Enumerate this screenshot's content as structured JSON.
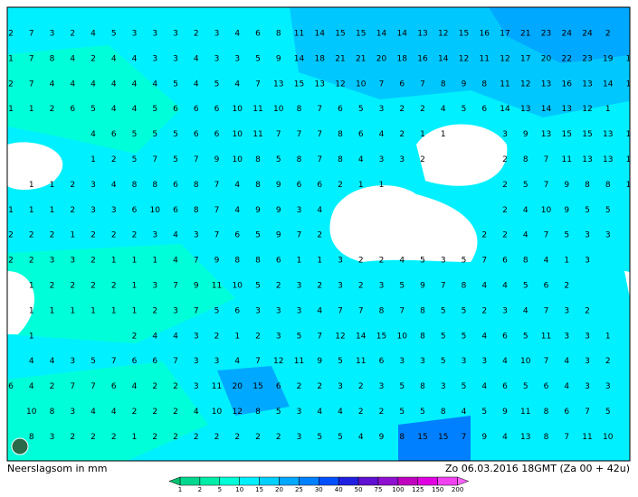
{
  "map": {
    "title": "Neerslagsom in mm",
    "timestamp": "Zo 06.03.2016 18GMT (Za 00 + 42u)",
    "grid": [
      [
        2,
        7,
        3,
        2,
        4,
        5,
        3,
        3,
        3,
        2,
        3,
        4,
        6,
        8,
        11,
        14,
        15,
        15,
        14,
        14,
        13,
        12,
        15,
        16,
        17,
        21,
        23,
        24,
        24,
        2,
        null
      ],
      [
        1,
        7,
        8,
        4,
        2,
        4,
        4,
        3,
        3,
        4,
        3,
        3,
        5,
        9,
        14,
        18,
        21,
        21,
        20,
        18,
        16,
        14,
        12,
        11,
        12,
        17,
        20,
        22,
        23,
        19,
        1
      ],
      [
        2,
        7,
        4,
        4,
        4,
        4,
        4,
        4,
        5,
        4,
        5,
        4,
        7,
        13,
        15,
        13,
        12,
        10,
        7,
        6,
        7,
        8,
        9,
        8,
        11,
        12,
        13,
        16,
        13,
        14,
        1
      ],
      [
        1,
        1,
        2,
        6,
        5,
        4,
        4,
        5,
        6,
        6,
        6,
        10,
        11,
        10,
        8,
        7,
        6,
        5,
        3,
        2,
        2,
        4,
        5,
        6,
        14,
        13,
        14,
        13,
        12,
        1,
        null
      ],
      [
        null,
        null,
        null,
        null,
        4,
        6,
        5,
        5,
        5,
        6,
        6,
        10,
        11,
        7,
        7,
        7,
        8,
        6,
        4,
        2,
        1,
        1,
        null,
        null,
        3,
        9,
        13,
        15,
        15,
        13,
        1
      ],
      [
        null,
        null,
        null,
        null,
        1,
        2,
        5,
        7,
        5,
        7,
        9,
        10,
        8,
        5,
        8,
        7,
        8,
        4,
        3,
        3,
        2,
        null,
        null,
        null,
        2,
        8,
        7,
        11,
        13,
        13,
        1
      ],
      [
        null,
        1,
        1,
        2,
        3,
        4,
        8,
        8,
        6,
        8,
        7,
        4,
        8,
        9,
        6,
        6,
        2,
        1,
        1,
        null,
        null,
        null,
        null,
        null,
        2,
        5,
        7,
        9,
        8,
        8,
        1
      ],
      [
        1,
        1,
        1,
        2,
        3,
        3,
        6,
        10,
        6,
        8,
        7,
        4,
        9,
        9,
        3,
        4,
        null,
        null,
        null,
        null,
        null,
        null,
        null,
        null,
        2,
        4,
        10,
        9,
        5,
        5,
        null
      ],
      [
        2,
        2,
        2,
        1,
        2,
        2,
        2,
        3,
        4,
        3,
        7,
        6,
        5,
        9,
        7,
        2,
        null,
        null,
        null,
        null,
        null,
        null,
        null,
        2,
        2,
        4,
        7,
        5,
        3,
        3,
        null
      ],
      [
        2,
        2,
        3,
        3,
        2,
        1,
        1,
        1,
        4,
        7,
        9,
        8,
        8,
        6,
        1,
        1,
        3,
        2,
        2,
        4,
        5,
        3,
        5,
        7,
        6,
        8,
        4,
        1,
        3,
        null,
        null
      ],
      [
        null,
        1,
        2,
        2,
        2,
        2,
        1,
        3,
        7,
        9,
        11,
        10,
        5,
        2,
        3,
        2,
        3,
        2,
        3,
        5,
        9,
        7,
        8,
        4,
        4,
        5,
        6,
        2,
        null,
        null,
        null
      ],
      [
        null,
        1,
        1,
        1,
        1,
        1,
        1,
        2,
        3,
        7,
        5,
        6,
        3,
        3,
        3,
        4,
        7,
        7,
        8,
        7,
        8,
        5,
        5,
        2,
        3,
        4,
        7,
        3,
        2,
        null,
        null
      ],
      [
        null,
        1,
        null,
        null,
        null,
        null,
        2,
        4,
        4,
        3,
        2,
        1,
        2,
        3,
        5,
        7,
        12,
        14,
        15,
        10,
        8,
        5,
        5,
        4,
        6,
        5,
        11,
        3,
        3,
        1,
        null
      ],
      [
        null,
        4,
        4,
        3,
        5,
        7,
        6,
        6,
        7,
        3,
        3,
        4,
        7,
        12,
        11,
        9,
        5,
        11,
        6,
        3,
        3,
        5,
        3,
        3,
        4,
        10,
        7,
        4,
        3,
        2,
        null
      ],
      [
        6,
        4,
        2,
        7,
        7,
        6,
        4,
        2,
        2,
        3,
        11,
        20,
        15,
        6,
        2,
        2,
        3,
        2,
        3,
        5,
        8,
        3,
        5,
        4,
        6,
        5,
        6,
        4,
        3,
        3,
        null
      ],
      [
        null,
        10,
        8,
        3,
        4,
        4,
        2,
        2,
        2,
        4,
        10,
        12,
        8,
        5,
        3,
        4,
        4,
        2,
        2,
        5,
        5,
        8,
        4,
        5,
        9,
        11,
        8,
        6,
        7,
        5,
        null
      ],
      [
        null,
        8,
        3,
        2,
        2,
        2,
        1,
        2,
        2,
        2,
        2,
        2,
        2,
        2,
        3,
        5,
        5,
        4,
        9,
        8,
        15,
        15,
        7,
        9,
        4,
        13,
        8,
        7,
        11,
        10,
        null
      ]
    ],
    "legend": {
      "labels": [
        1,
        2,
        5,
        10,
        15,
        20,
        25,
        30,
        40,
        50,
        75,
        100,
        125,
        150,
        200
      ],
      "colors": [
        "#00d890",
        "#00eea8",
        "#00ffd8",
        "#00f0ff",
        "#00d0ff",
        "#00a8ff",
        "#0080ff",
        "#0050ff",
        "#2020e0",
        "#6010d0",
        "#9010d0",
        "#c000c0",
        "#e000e0",
        "#f040f0"
      ]
    }
  }
}
